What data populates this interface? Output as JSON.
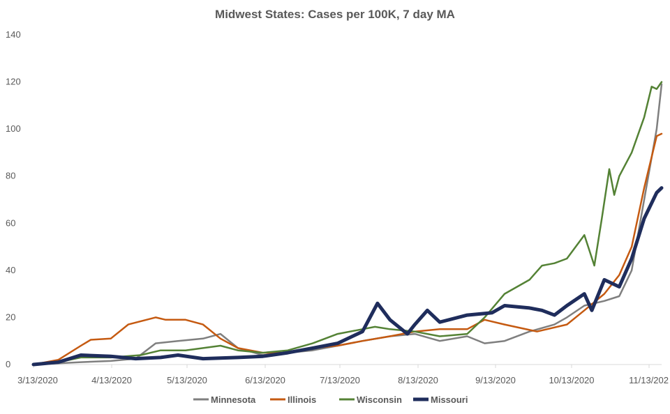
{
  "chart_data": {
    "type": "line",
    "title": "Midwest States: Cases per 100K, 7 day MA",
    "xlabel": "",
    "ylabel": "",
    "x_start": "3/13/2020",
    "x_end": "11/20/2020",
    "x_tick_labels": [
      "3/13/2020",
      "4/13/2020",
      "5/13/2020",
      "6/13/2020",
      "7/13/2020",
      "8/13/2020",
      "9/13/2020",
      "10/13/2020",
      "11/13/202"
    ],
    "y_ticks": [
      0,
      20,
      40,
      60,
      80,
      100,
      120,
      140
    ],
    "ylim": [
      0,
      140
    ],
    "grid": false,
    "legend_position": "bottom",
    "series": [
      {
        "name": "Minnesota",
        "color": "#7f7f7f",
        "x": [
          "3/13/2020",
          "3/23/2020",
          "4/1/2020",
          "4/13/2020",
          "4/23/2020",
          "5/1/2020",
          "5/10/2020",
          "5/20/2020",
          "5/27/2020",
          "6/3/2020",
          "6/13/2020",
          "6/23/2020",
          "7/3/2020",
          "7/13/2020",
          "7/23/2020",
          "8/3/2020",
          "8/13/2020",
          "8/23/2020",
          "9/3/2020",
          "9/10/2020",
          "9/18/2020",
          "9/28/2020",
          "10/8/2020",
          "10/13/2020",
          "10/20/2020",
          "10/28/2020",
          "11/3/2020",
          "11/8/2020",
          "11/13/2020",
          "11/18/2020",
          "11/20/2020"
        ],
        "values": [
          0,
          0.5,
          1,
          1.5,
          2.5,
          9,
          10,
          11,
          13,
          7,
          4,
          5,
          6,
          8,
          10,
          12,
          13,
          10,
          12,
          9,
          10,
          14,
          17,
          20,
          25,
          27,
          29,
          40,
          70,
          100,
          119
        ]
      },
      {
        "name": "Illinois",
        "color": "#c55a11",
        "x": [
          "3/13/2020",
          "3/23/2020",
          "4/1/2020",
          "4/5/2020",
          "4/13/2020",
          "4/20/2020",
          "5/1/2020",
          "5/5/2020",
          "5/13/2020",
          "5/20/2020",
          "5/27/2020",
          "6/3/2020",
          "6/13/2020",
          "6/23/2020",
          "7/3/2020",
          "7/13/2020",
          "7/23/2020",
          "8/3/2020",
          "8/13/2020",
          "8/23/2020",
          "9/3/2020",
          "9/10/2020",
          "9/18/2020",
          "10/1/2020",
          "10/13/2020",
          "10/20/2020",
          "10/28/2020",
          "11/3/2020",
          "11/8/2020",
          "11/13/2020",
          "11/18/2020",
          "11/20/2020"
        ],
        "values": [
          0,
          2,
          8,
          10.5,
          11,
          17,
          20,
          19,
          19,
          17,
          11,
          7,
          5,
          5,
          7,
          8,
          10,
          12,
          14,
          15,
          15,
          19,
          17,
          14,
          17,
          23,
          30,
          38,
          50,
          75,
          97,
          98
        ]
      },
      {
        "name": "Wisconsin",
        "color": "#548235",
        "x": [
          "3/13/2020",
          "3/23/2020",
          "4/1/2020",
          "4/13/2020",
          "4/25/2020",
          "5/3/2020",
          "5/13/2020",
          "5/20/2020",
          "5/27/2020",
          "6/3/2020",
          "6/13/2020",
          "6/23/2020",
          "7/3/2020",
          "7/13/2020",
          "7/23/2020",
          "7/28/2020",
          "8/3/2020",
          "8/13/2020",
          "8/23/2020",
          "9/3/2020",
          "9/10/2020",
          "9/18/2020",
          "9/28/2020",
          "10/3/2020",
          "10/8/2020",
          "10/13/2020",
          "10/20/2020",
          "10/24/2020",
          "10/27/2020",
          "10/30/2020",
          "11/1/2020",
          "11/3/2020",
          "11/8/2020",
          "11/13/2020",
          "11/16/2020",
          "11/18/2020",
          "11/20/2020"
        ],
        "values": [
          0,
          1,
          3,
          3,
          4,
          6,
          6,
          7,
          8,
          6,
          5,
          6,
          9,
          13,
          15,
          16,
          15,
          14,
          12,
          13,
          20,
          30,
          36,
          42,
          43,
          45,
          55,
          42,
          62,
          83,
          72,
          80,
          90,
          105,
          118,
          117,
          120
        ]
      },
      {
        "name": "Missouri",
        "color": "#1f2d5c",
        "x": [
          "3/13/2020",
          "3/23/2020",
          "4/1/2020",
          "4/13/2020",
          "4/23/2020",
          "5/3/2020",
          "5/10/2020",
          "5/20/2020",
          "6/3/2020",
          "6/13/2020",
          "6/23/2020",
          "7/3/2020",
          "7/13/2020",
          "7/23/2020",
          "7/29/2020",
          "8/3/2020",
          "8/10/2020",
          "8/13/2020",
          "8/18/2020",
          "8/23/2020",
          "9/3/2020",
          "9/13/2020",
          "9/18/2020",
          "9/28/2020",
          "10/3/2020",
          "10/8/2020",
          "10/13/2020",
          "10/20/2020",
          "10/23/2020",
          "10/28/2020",
          "11/3/2020",
          "11/8/2020",
          "11/13/2020",
          "11/18/2020",
          "11/20/2020"
        ],
        "values": [
          0,
          1,
          4,
          3.5,
          2.5,
          3,
          4,
          2.5,
          3,
          3.5,
          5,
          7,
          9,
          14,
          26,
          19,
          13,
          17,
          23,
          18,
          21,
          22,
          25,
          24,
          23,
          21,
          25,
          30,
          23,
          36,
          33,
          45,
          62,
          73,
          75
        ]
      }
    ]
  }
}
